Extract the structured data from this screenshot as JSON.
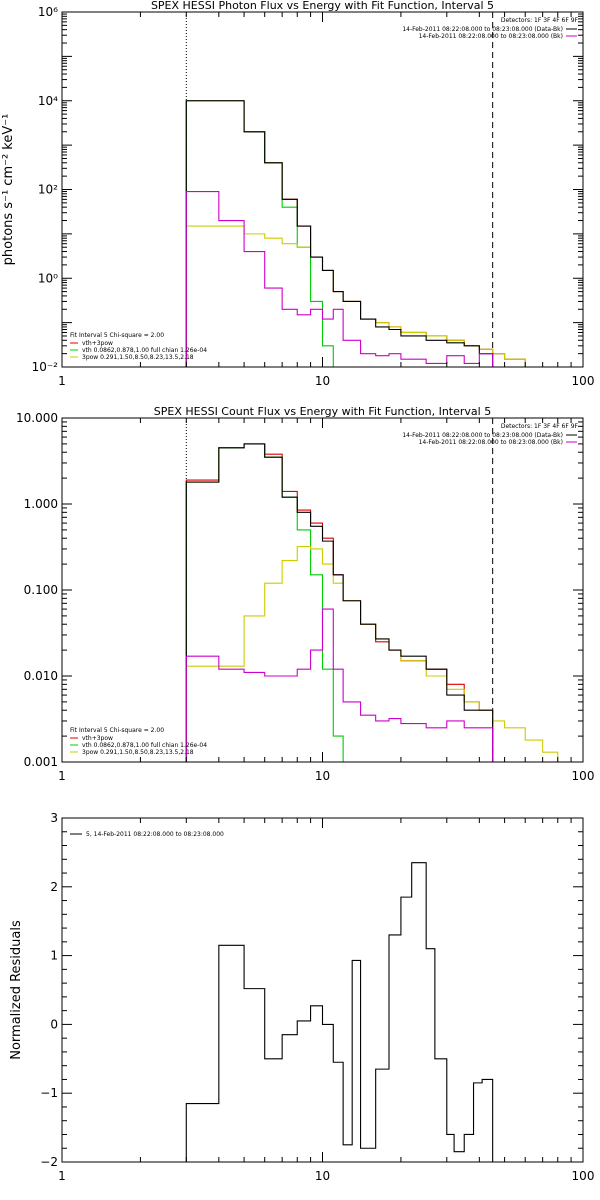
{
  "figure": {
    "background": "#ffffff",
    "axis_color": "#000000"
  },
  "chart_data": [
    {
      "type": "line",
      "step": true,
      "title": "SPEX HESSI Photon Flux vs Energy with Fit Function, Interval 5",
      "xlabel": "",
      "ylabel": "photons s⁻¹ cm⁻² keV⁻¹",
      "xscale": "log",
      "yscale": "log",
      "xlim": [
        1,
        100
      ],
      "ylim": [
        0.01,
        1000000
      ],
      "x_ticks": [
        1,
        10,
        100
      ],
      "x_tick_labels": [
        "1",
        "10",
        "100"
      ],
      "y_ticks": [
        0.01,
        1,
        100,
        10000,
        1000000
      ],
      "y_tick_labels": [
        "10⁻²",
        "10⁰",
        "10²",
        "10⁴",
        "10⁶"
      ],
      "grid": false,
      "vlines": [
        {
          "x": 3,
          "style": "dotted"
        },
        {
          "x": 45,
          "style": "dashed"
        }
      ],
      "legend_topright_title": "Detectors: 1F 3F 4F 6F 9F",
      "legend_topright": [
        {
          "text": "14-Feb-2011 08:22:08.000 to 08:23:08.000 (Data-Bk)",
          "color": "#000000"
        },
        {
          "text": "14-Feb-2011 08:22:08.000 to 08:23:08.000 (Bk)",
          "color": "#cc00cc"
        }
      ],
      "legend_bottomleft_title": "Fit Interval 5   Chi-square = 2.00",
      "legend_bottomleft": [
        {
          "text": "vth+3pow",
          "color": "#dd0000"
        },
        {
          "text": "vth 0.0862,0.878,1.00  full chian 1.26e-04",
          "color": "#00cc00"
        },
        {
          "text": "3pow 0.291,1.50,8.50,8.23,13.5,2.18",
          "color": "#cccc00"
        }
      ],
      "series": [
        {
          "name": "vth+3pow",
          "color": "#dd0000",
          "edges": [
            3,
            4,
            5,
            6,
            7,
            8,
            9,
            10,
            11,
            12,
            14,
            16,
            18,
            20,
            25,
            30,
            35,
            40,
            45,
            50,
            60
          ],
          "values": [
            10000,
            10000,
            2000,
            400,
            60,
            15,
            3,
            1.5,
            0.5,
            0.3,
            0.12,
            0.1,
            0.08,
            0.06,
            0.05,
            0.04,
            0.03,
            0.025,
            0.02,
            0.015
          ]
        },
        {
          "name": "vth 0.0862,0.878,1.00  full chian 1.26e-04",
          "color": "#00cc00",
          "edges": [
            3,
            4,
            5,
            6,
            7,
            8,
            9,
            10,
            11,
            12,
            13
          ],
          "values": [
            10000,
            10000,
            2000,
            400,
            40,
            5,
            0.3,
            0.03,
            0.01,
            0.005
          ]
        },
        {
          "name": "3pow 0.291,1.50,8.50,8.23,13.5,2.18",
          "color": "#cccc00",
          "edges": [
            3,
            4,
            5,
            6,
            7,
            8,
            9,
            10,
            11,
            12,
            14,
            16,
            18,
            20,
            25,
            30,
            35,
            40,
            45,
            50,
            60
          ],
          "values": [
            15,
            15,
            10,
            8,
            6,
            5,
            3,
            1.5,
            0.5,
            0.3,
            0.12,
            0.1,
            0.08,
            0.06,
            0.05,
            0.04,
            0.03,
            0.025,
            0.02,
            0.015
          ]
        },
        {
          "name": "Data-Bk",
          "color": "#000000",
          "edges": [
            3,
            4,
            5,
            6,
            7,
            8,
            9,
            10,
            11,
            12,
            14,
            16,
            18,
            20,
            25,
            30,
            35,
            40,
            45
          ],
          "values": [
            10000,
            10000,
            2000,
            400,
            60,
            15,
            3,
            1.5,
            0.5,
            0.3,
            0.12,
            0.08,
            0.07,
            0.05,
            0.04,
            0.035,
            0.03,
            0.02
          ]
        },
        {
          "name": "Bk",
          "color": "#cc00cc",
          "edges": [
            3,
            4,
            5,
            6,
            7,
            8,
            9,
            10,
            11,
            12,
            14,
            16,
            18,
            20,
            25,
            30,
            35,
            40,
            45
          ],
          "values": [
            90,
            20,
            4,
            0.6,
            0.2,
            0.15,
            0.2,
            0.12,
            0.2,
            0.04,
            0.02,
            0.018,
            0.02,
            0.015,
            0.012,
            0.018,
            0.012,
            0.02
          ]
        }
      ]
    },
    {
      "type": "line",
      "step": true,
      "title": "SPEX HESSI Count Flux vs Energy with Fit Function, Interval 5",
      "xlabel": "",
      "ylabel": "",
      "xscale": "log",
      "yscale": "log",
      "xlim": [
        1,
        100
      ],
      "ylim": [
        0.001,
        10
      ],
      "x_ticks": [
        1,
        10,
        100
      ],
      "x_tick_labels": [
        "1",
        "10",
        "100"
      ],
      "y_ticks": [
        0.001,
        0.01,
        0.1,
        1,
        10
      ],
      "y_tick_labels": [
        "0.001",
        "0.010",
        "0.100",
        "1.000",
        "10.000"
      ],
      "grid": false,
      "vlines": [
        {
          "x": 3,
          "style": "dotted"
        },
        {
          "x": 45,
          "style": "dashed"
        }
      ],
      "legend_topright_title": "Detectors: 1F 3F 4F 6F 9F",
      "legend_topright": [
        {
          "text": "14-Feb-2011 08:22:08.000 to 08:23:08.000 (Data-Bk)",
          "color": "#000000"
        },
        {
          "text": "14-Feb-2011 08:22:08.000 to 08:23:08.000 (Bk)",
          "color": "#cc00cc"
        }
      ],
      "legend_bottomleft_title": "Fit Interval 5   Chi-square = 2.00",
      "legend_bottomleft": [
        {
          "text": "vth+3pow",
          "color": "#dd0000"
        },
        {
          "text": "vth 0.0862,0.878,1.00  full chian 1.26e-04",
          "color": "#00cc00"
        },
        {
          "text": "3pow 0.291,1.50,8.50,8.23,13.5,2.18",
          "color": "#cccc00"
        }
      ],
      "series": [
        {
          "name": "vth+3pow",
          "color": "#dd0000",
          "edges": [
            3,
            4,
            5,
            6,
            7,
            8,
            9,
            10,
            11,
            12,
            14,
            16,
            18,
            20,
            25,
            30,
            35,
            40,
            45
          ],
          "values": [
            1.9,
            4.5,
            5,
            3.8,
            1.4,
            0.85,
            0.6,
            0.4,
            0.15,
            0.075,
            0.04,
            0.025,
            0.02,
            0.015,
            0.012,
            0.008,
            0.005,
            0.004
          ]
        },
        {
          "name": "vth 0.0862,0.878,1.00  full chian 1.26e-04",
          "color": "#00cc00",
          "edges": [
            3,
            4,
            5,
            6,
            7,
            8,
            9,
            10,
            11,
            12,
            13
          ],
          "values": [
            1.8,
            4.5,
            5,
            3.5,
            1.2,
            0.5,
            0.15,
            0.012,
            0.002,
            0.0008
          ]
        },
        {
          "name": "3pow 0.291,1.50,8.50,8.23,13.5,2.18",
          "color": "#cccc00",
          "edges": [
            3,
            4,
            5,
            6,
            7,
            8,
            9,
            10,
            11,
            12,
            14,
            16,
            18,
            20,
            25,
            30,
            35,
            40,
            45,
            50,
            60,
            70,
            80,
            90
          ],
          "values": [
            0.013,
            0.013,
            0.05,
            0.12,
            0.22,
            0.32,
            0.3,
            0.2,
            0.12,
            0.075,
            0.04,
            0.027,
            0.02,
            0.015,
            0.01,
            0.007,
            0.005,
            0.004,
            0.003,
            0.0025,
            0.0018,
            0.0013,
            0.001
          ]
        },
        {
          "name": "Data-Bk",
          "color": "#000000",
          "edges": [
            3,
            4,
            5,
            6,
            7,
            8,
            9,
            10,
            11,
            12,
            14,
            16,
            18,
            20,
            25,
            30,
            35,
            40,
            45
          ],
          "values": [
            1.8,
            4.5,
            5,
            3.5,
            1.2,
            0.8,
            0.55,
            0.37,
            0.15,
            0.075,
            0.04,
            0.027,
            0.02,
            0.017,
            0.012,
            0.006,
            0.004,
            0.004
          ]
        },
        {
          "name": "Bk",
          "color": "#cc00cc",
          "edges": [
            3,
            4,
            5,
            6,
            7,
            8,
            9,
            10,
            11,
            12,
            14,
            16,
            18,
            20,
            25,
            30,
            35,
            40,
            45
          ],
          "values": [
            0.017,
            0.012,
            0.011,
            0.01,
            0.01,
            0.012,
            0.02,
            0.06,
            0.012,
            0.005,
            0.0035,
            0.003,
            0.0032,
            0.0028,
            0.0025,
            0.003,
            0.0025,
            0.0025
          ]
        }
      ]
    },
    {
      "type": "line",
      "step": true,
      "title": "",
      "xlabel": "",
      "ylabel": "Normalized Residuals",
      "xscale": "log",
      "yscale": "linear",
      "xlim": [
        1,
        100
      ],
      "ylim": [
        -2,
        3
      ],
      "x_ticks": [
        1,
        10,
        100
      ],
      "x_tick_labels": [
        "1",
        "10",
        "100"
      ],
      "y_ticks": [
        -2,
        -1,
        0,
        1,
        2,
        3
      ],
      "y_tick_labels": [
        "−2",
        "−1",
        "0",
        "1",
        "2",
        "3"
      ],
      "grid": false,
      "legend_topleft": [
        {
          "text": "5, 14-Feb-2011 08:22:08.000 to 08:23:08.000",
          "color": "#000000"
        }
      ],
      "series": [
        {
          "name": "5, 14-Feb-2011 08:22:08.000 to 08:23:08.000",
          "color": "#000000",
          "edges": [
            3,
            4,
            5,
            6,
            7,
            8,
            9,
            10,
            11,
            12,
            13,
            14,
            16,
            18,
            20,
            22,
            25,
            27,
            30,
            32,
            35,
            38,
            41,
            45
          ],
          "values": [
            -1.15,
            1.15,
            0.52,
            -0.5,
            -0.15,
            0.05,
            0.27,
            0,
            -0.55,
            -1.75,
            0.93,
            -1.8,
            -0.65,
            1.3,
            1.85,
            2.35,
            1.1,
            -0.5,
            -1.6,
            -1.85,
            -1.6,
            -0.85,
            -0.8
          ]
        }
      ]
    }
  ]
}
